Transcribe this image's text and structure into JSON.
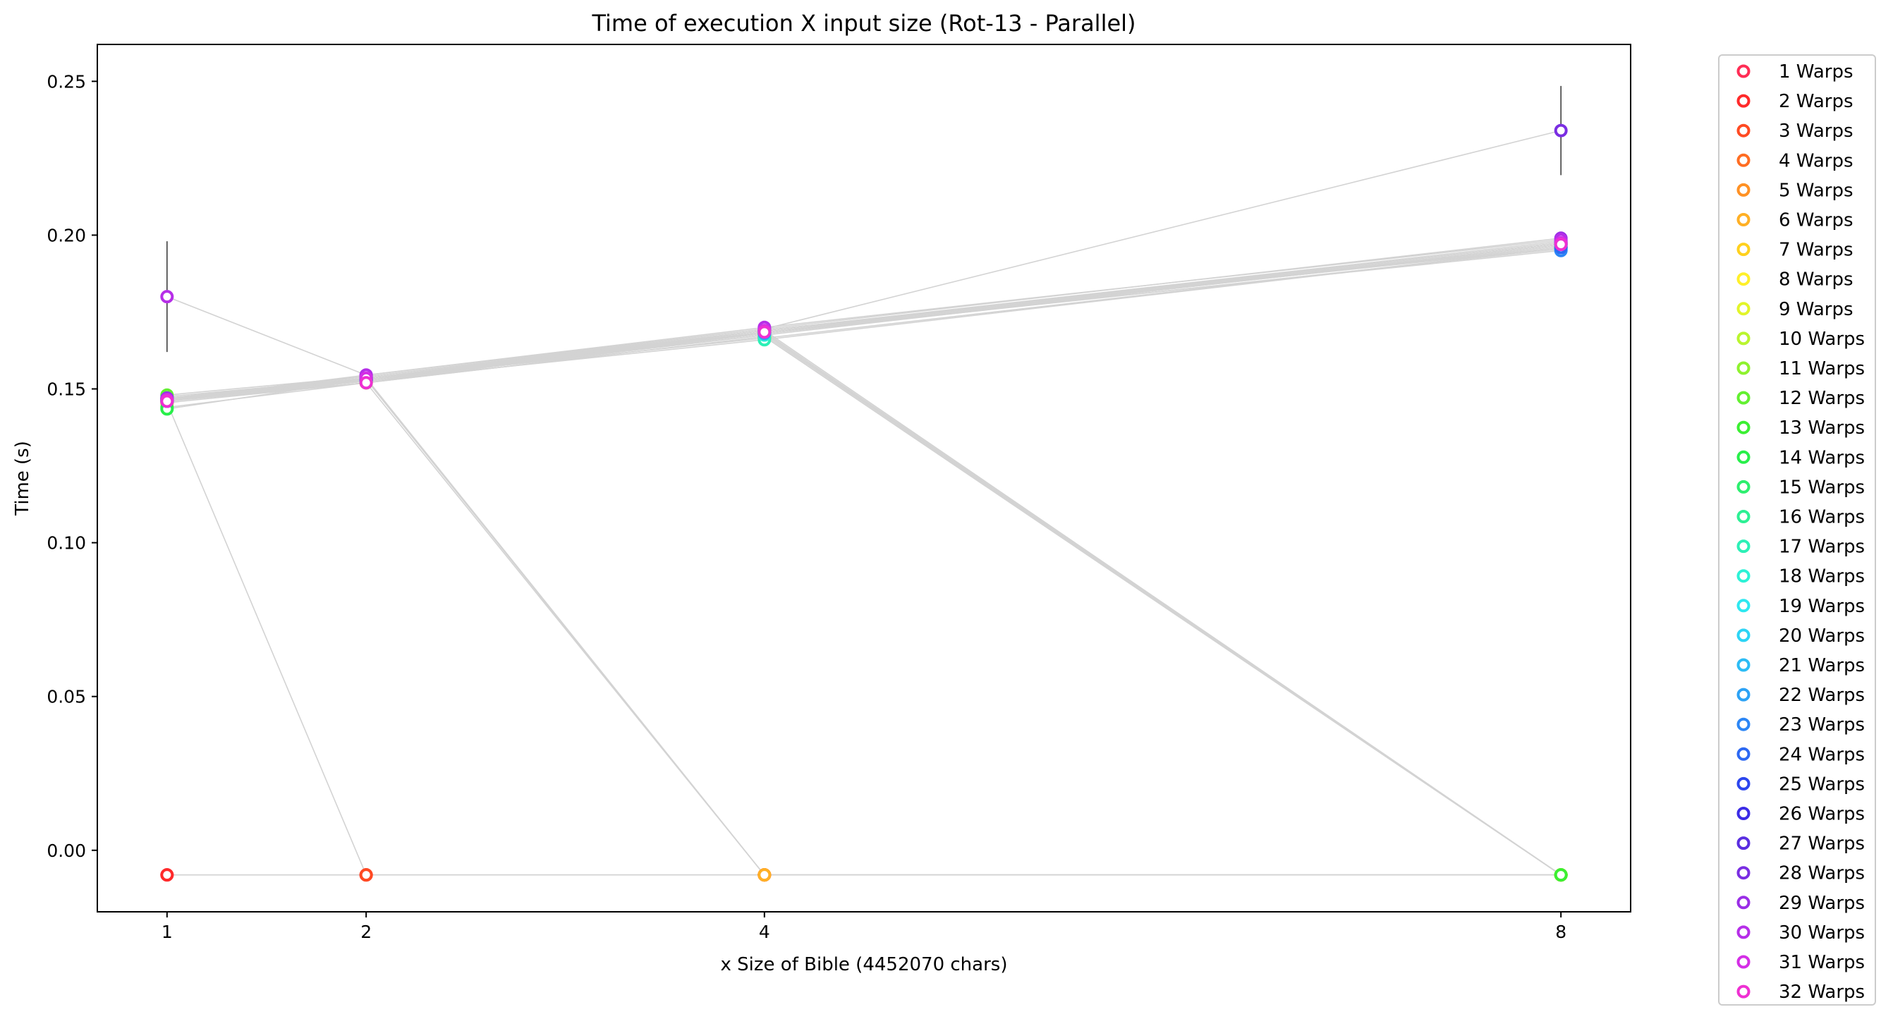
{
  "chart_data": {
    "type": "scatter",
    "title": "Time of execution X input size (Rot-13 - Parallel)",
    "xlabel": "x Size of Bible (4452070 chars)",
    "ylabel": "Time (s)",
    "x_scale": "linear",
    "xlim": [
      0.65,
      8.35
    ],
    "ylim": [
      -0.02,
      0.262
    ],
    "x_ticks": [
      1,
      2,
      4,
      8
    ],
    "x_tick_labels": [
      "1",
      "2",
      "4",
      "8"
    ],
    "y_ticks": [
      0.0,
      0.05,
      0.1,
      0.15,
      0.2,
      0.25
    ],
    "y_tick_labels": [
      "0.00",
      "0.05",
      "0.10",
      "0.15",
      "0.20",
      "0.25"
    ],
    "grid": false,
    "legend_placement": "outside-right",
    "marker": "hollow-circle",
    "line_color": "#d3d3d3",
    "errorbar_color": "#333333",
    "series": [
      {
        "name": "1 Warps",
        "color": "#ff2d55",
        "x": [
          1,
          2,
          4,
          8
        ],
        "y": [
          -0.008,
          -0.008,
          -0.008,
          -0.008
        ]
      },
      {
        "name": "2 Warps",
        "color": "#ff2a2a",
        "x": [
          1,
          2,
          4,
          8
        ],
        "y": [
          -0.008,
          -0.008,
          -0.008,
          -0.008
        ]
      },
      {
        "name": "3 Warps",
        "color": "#ff4a22",
        "x": [
          1,
          2,
          4,
          8
        ],
        "y": [
          0.1455,
          -0.008,
          -0.008,
          -0.008
        ]
      },
      {
        "name": "4 Warps",
        "color": "#ff6d22",
        "x": [
          1,
          2,
          4,
          8
        ],
        "y": [
          0.146,
          0.1535,
          -0.008,
          -0.008
        ]
      },
      {
        "name": "5 Warps",
        "color": "#ff9124",
        "x": [
          1,
          2,
          4,
          8
        ],
        "y": [
          0.1465,
          0.152,
          -0.008,
          -0.008
        ]
      },
      {
        "name": "6 Warps",
        "color": "#ffb025",
        "x": [
          1,
          2,
          4,
          8
        ],
        "y": [
          0.147,
          0.153,
          -0.008,
          -0.008
        ]
      },
      {
        "name": "7 Warps",
        "color": "#ffd11e",
        "x": [
          1,
          2,
          4,
          8
        ],
        "y": [
          0.1455,
          0.152,
          0.167,
          -0.008
        ]
      },
      {
        "name": "8 Warps",
        "color": "#fff02a",
        "x": [
          1,
          2,
          4,
          8
        ],
        "y": [
          0.146,
          0.153,
          0.168,
          -0.008
        ]
      },
      {
        "name": "9 Warps",
        "color": "#e2f52a",
        "x": [
          1,
          2,
          4,
          8
        ],
        "y": [
          0.1465,
          0.1525,
          0.1675,
          -0.008
        ]
      },
      {
        "name": "10 Warps",
        "color": "#b9f52e",
        "x": [
          1,
          2,
          4,
          8
        ],
        "y": [
          0.147,
          0.153,
          0.168,
          -0.008
        ]
      },
      {
        "name": "11 Warps",
        "color": "#8ef22e",
        "x": [
          1,
          2,
          4,
          8
        ],
        "y": [
          0.1475,
          0.1535,
          0.1685,
          -0.008
        ]
      },
      {
        "name": "12 Warps",
        "color": "#62f030",
        "x": [
          1,
          2,
          4,
          8
        ],
        "y": [
          0.148,
          0.154,
          0.169,
          -0.008
        ]
      },
      {
        "name": "13 Warps",
        "color": "#3bef32",
        "x": [
          1,
          2,
          4,
          8
        ],
        "y": [
          0.144,
          0.152,
          0.167,
          -0.008
        ]
      },
      {
        "name": "14 Warps",
        "color": "#28ef4a",
        "x": [
          1,
          2,
          4,
          8
        ],
        "y": [
          0.1435,
          0.153,
          0.1665,
          0.196
        ]
      },
      {
        "name": "15 Warps",
        "color": "#2cef6e",
        "x": [
          1,
          2,
          4,
          8
        ],
        "y": [
          0.146,
          0.1535,
          0.168,
          0.197
        ]
      },
      {
        "name": "16 Warps",
        "color": "#2cf094",
        "x": [
          1,
          2,
          4,
          8
        ],
        "y": [
          0.147,
          0.153,
          0.168,
          0.1965
        ]
      },
      {
        "name": "17 Warps",
        "color": "#2cf0b6",
        "x": [
          1,
          2,
          4,
          8
        ],
        "y": [
          0.1465,
          0.1525,
          0.166,
          0.196
        ]
      },
      {
        "name": "18 Warps",
        "color": "#2cf2d6",
        "x": [
          1,
          2,
          4,
          8
        ],
        "y": [
          0.146,
          0.153,
          0.1675,
          0.197
        ]
      },
      {
        "name": "19 Warps",
        "color": "#2ee8f0",
        "x": [
          1,
          2,
          4,
          8
        ],
        "y": [
          0.1465,
          0.153,
          0.168,
          0.1965
        ]
      },
      {
        "name": "20 Warps",
        "color": "#2cd4f5",
        "x": [
          1,
          2,
          4,
          8
        ],
        "y": [
          0.147,
          0.1535,
          0.168,
          0.197
        ]
      },
      {
        "name": "21 Warps",
        "color": "#2cbcf5",
        "x": [
          1,
          2,
          4,
          8
        ],
        "y": [
          0.146,
          0.153,
          0.1685,
          0.1975
        ]
      },
      {
        "name": "22 Warps",
        "color": "#2ca2f5",
        "x": [
          1,
          2,
          4,
          8
        ],
        "y": [
          0.1465,
          0.1525,
          0.168,
          0.1955
        ]
      },
      {
        "name": "23 Warps",
        "color": "#2c86f5",
        "x": [
          1,
          2,
          4,
          8
        ],
        "y": [
          0.147,
          0.153,
          0.1685,
          0.195
        ]
      },
      {
        "name": "24 Warps",
        "color": "#2c68f2",
        "x": [
          1,
          2,
          4,
          8
        ],
        "y": [
          0.146,
          0.153,
          0.169,
          0.196
        ]
      },
      {
        "name": "25 Warps",
        "color": "#2c46ee",
        "x": [
          1,
          2,
          4,
          8
        ],
        "y": [
          0.1465,
          0.1535,
          0.1685,
          0.197
        ]
      },
      {
        "name": "26 Warps",
        "color": "#3c2ce6",
        "x": [
          1,
          2,
          4,
          8
        ],
        "y": [
          0.147,
          0.1535,
          0.169,
          0.1975
        ]
      },
      {
        "name": "27 Warps",
        "color": "#5a2ee0",
        "x": [
          1,
          2,
          4,
          8
        ],
        "y": [
          0.146,
          0.153,
          0.169,
          0.198
        ]
      },
      {
        "name": "28 Warps",
        "color": "#7a2ee2",
        "x": [
          1,
          2,
          4,
          8
        ],
        "y": [
          0.1465,
          0.1545,
          0.1695,
          0.234
        ],
        "yerr": [
          0,
          0,
          0,
          0.0145
        ]
      },
      {
        "name": "29 Warps",
        "color": "#9a2ee6",
        "x": [
          1,
          2,
          4,
          8
        ],
        "y": [
          0.147,
          0.154,
          0.1695,
          0.199
        ]
      },
      {
        "name": "30 Warps",
        "color": "#b62ee8",
        "x": [
          1,
          2,
          4,
          8
        ],
        "y": [
          0.18,
          0.1545,
          0.17,
          0.1985
        ],
        "yerr": [
          0.018,
          0,
          0,
          0
        ]
      },
      {
        "name": "31 Warps",
        "color": "#d42ee6",
        "x": [
          1,
          2,
          4,
          8
        ],
        "y": [
          0.1465,
          0.1535,
          0.169,
          0.1975
        ]
      },
      {
        "name": "32 Warps",
        "color": "#ee30d2",
        "x": [
          1,
          2,
          4,
          8
        ],
        "y": [
          0.146,
          0.152,
          0.1685,
          0.197
        ]
      }
    ]
  }
}
